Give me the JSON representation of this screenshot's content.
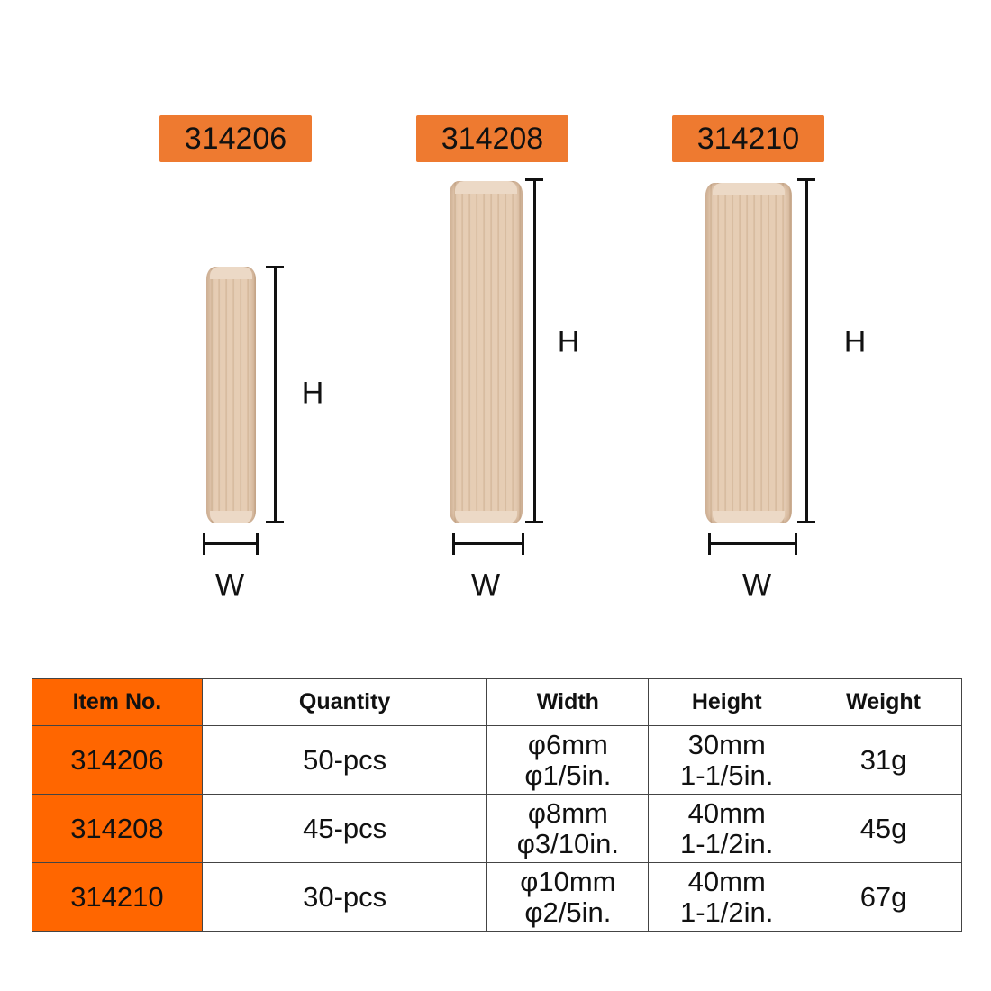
{
  "products": [
    {
      "item": "314206",
      "h_label": "H",
      "w_label": "W"
    },
    {
      "item": "314208",
      "h_label": "H",
      "w_label": "W"
    },
    {
      "item": "314210",
      "h_label": "H",
      "w_label": "W"
    }
  ],
  "colors": {
    "label_bg": "#ee7a30",
    "table_accent": "#ff6600"
  },
  "table": {
    "headers": [
      "Item No.",
      "Quantity",
      "Width",
      "Height",
      "Weight"
    ],
    "rows": [
      {
        "item": "314206",
        "quantity": "50-pcs",
        "width_mm": "φ6mm",
        "width_in": "φ1/5in.",
        "height_mm": "30mm",
        "height_in": "1-1/5in.",
        "weight": "31g"
      },
      {
        "item": "314208",
        "quantity": "45-pcs",
        "width_mm": "φ8mm",
        "width_in": "φ3/10in.",
        "height_mm": "40mm",
        "height_in": "1-1/2in.",
        "weight": "45g"
      },
      {
        "item": "314210",
        "quantity": "30-pcs",
        "width_mm": "φ10mm",
        "width_in": "φ2/5in.",
        "height_mm": "40mm",
        "height_in": "1-1/2in.",
        "weight": "67g"
      }
    ]
  }
}
